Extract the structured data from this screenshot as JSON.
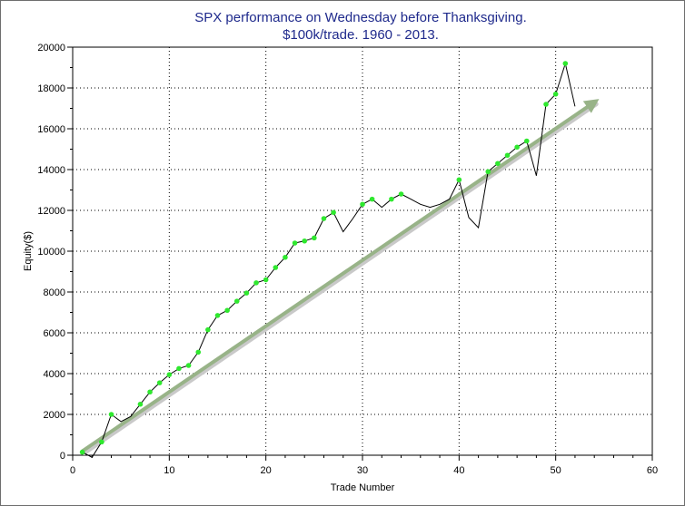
{
  "chart_data": {
    "type": "line",
    "title": "SPX performance on Wednesday before Thanksgiving.",
    "subtitle": "$100k/trade. 1960 - 2013.",
    "xlabel": "Trade Number",
    "ylabel": "Equity($)",
    "xlim": [
      0,
      60
    ],
    "ylim": [
      0,
      20000
    ],
    "x_ticks": [
      0,
      10,
      20,
      30,
      40,
      50,
      60
    ],
    "y_ticks": [
      0,
      2000,
      4000,
      6000,
      8000,
      10000,
      12000,
      14000,
      16000,
      18000,
      20000
    ],
    "grid": true,
    "series": [
      {
        "color": "#000000",
        "marker_color": "#2ee82e",
        "x": [
          1,
          2,
          3,
          4,
          5,
          6,
          7,
          8,
          9,
          10,
          11,
          12,
          13,
          14,
          15,
          16,
          17,
          18,
          19,
          20,
          21,
          22,
          23,
          24,
          25,
          26,
          27,
          28,
          29,
          30,
          31,
          32,
          33,
          34,
          35,
          36,
          37,
          38,
          39,
          40,
          41,
          42,
          43,
          44,
          45,
          46,
          47,
          48,
          49,
          50,
          51,
          52
        ],
        "y": [
          150,
          -100,
          650,
          2000,
          1650,
          1900,
          2500,
          3100,
          3550,
          3950,
          4250,
          4400,
          5050,
          6150,
          6850,
          7100,
          7550,
          7950,
          8450,
          8600,
          9200,
          9700,
          10400,
          10500,
          10650,
          11600,
          11900,
          10950,
          11600,
          12300,
          12550,
          12150,
          12550,
          12800,
          12550,
          12300,
          12150,
          12300,
          12550,
          13500,
          11650,
          11150,
          13900,
          14300,
          14700,
          15100,
          15400,
          13700,
          17200,
          17700,
          19200,
          17100
        ],
        "marked": [
          true,
          false,
          true,
          true,
          false,
          false,
          true,
          true,
          true,
          true,
          true,
          true,
          true,
          true,
          true,
          true,
          true,
          true,
          true,
          true,
          true,
          true,
          true,
          true,
          true,
          true,
          true,
          false,
          false,
          true,
          true,
          false,
          true,
          true,
          false,
          false,
          false,
          false,
          false,
          true,
          false,
          false,
          true,
          true,
          true,
          true,
          true,
          false,
          true,
          true,
          true,
          false
        ]
      }
    ],
    "trend_arrow": {
      "color": "#98b388",
      "x": [
        1,
        54
      ],
      "y": [
        200,
        17300
      ]
    }
  }
}
